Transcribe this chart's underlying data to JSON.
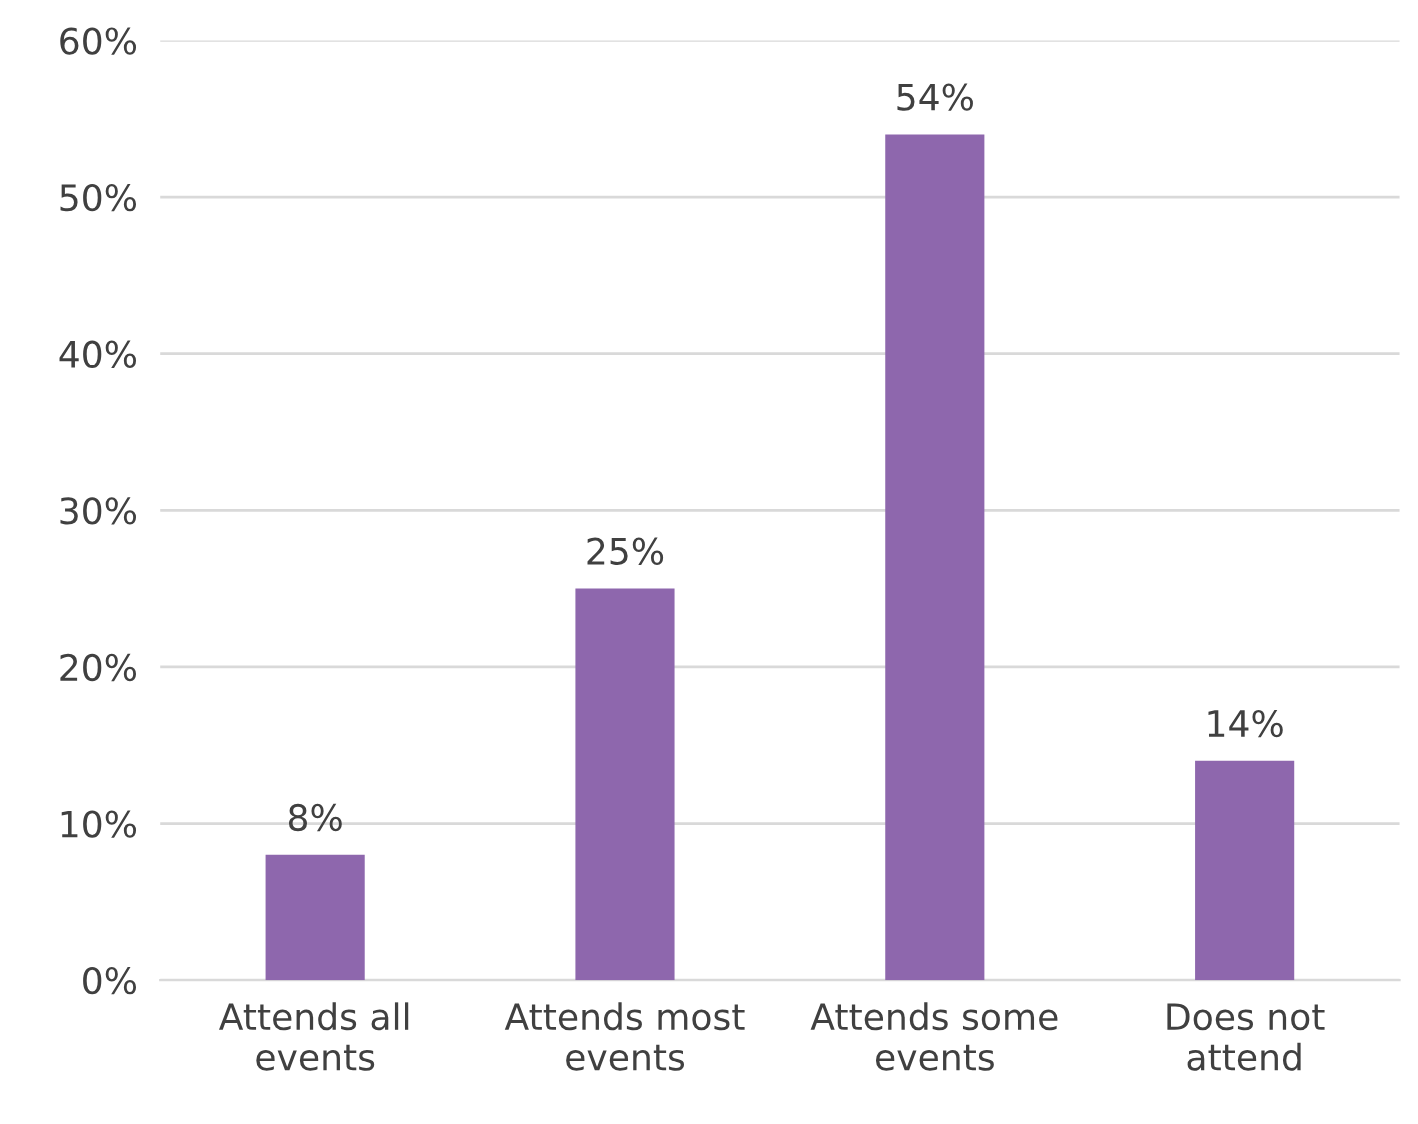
{
  "chart_data": {
    "type": "bar",
    "categories": [
      "Attends all\nevents",
      "Attends most\nevents",
      "Attends some\nevents",
      "Does not\nattend"
    ],
    "values": [
      8,
      25,
      54,
      14
    ],
    "color": "#8e67ad",
    "value_labels": [
      "8%",
      "25%",
      "54%",
      "14%"
    ],
    "ylim": [
      0,
      60
    ],
    "yticks": [
      {
        "value": 0,
        "label": "0%"
      },
      {
        "value": 10,
        "label": "10%"
      },
      {
        "value": 20,
        "label": "20%"
      },
      {
        "value": 30,
        "label": "30%"
      },
      {
        "value": 40,
        "label": "40%"
      },
      {
        "value": 50,
        "label": "50%"
      },
      {
        "value": 60,
        "label": "60%"
      }
    ],
    "grid": "y",
    "legend": false
  }
}
